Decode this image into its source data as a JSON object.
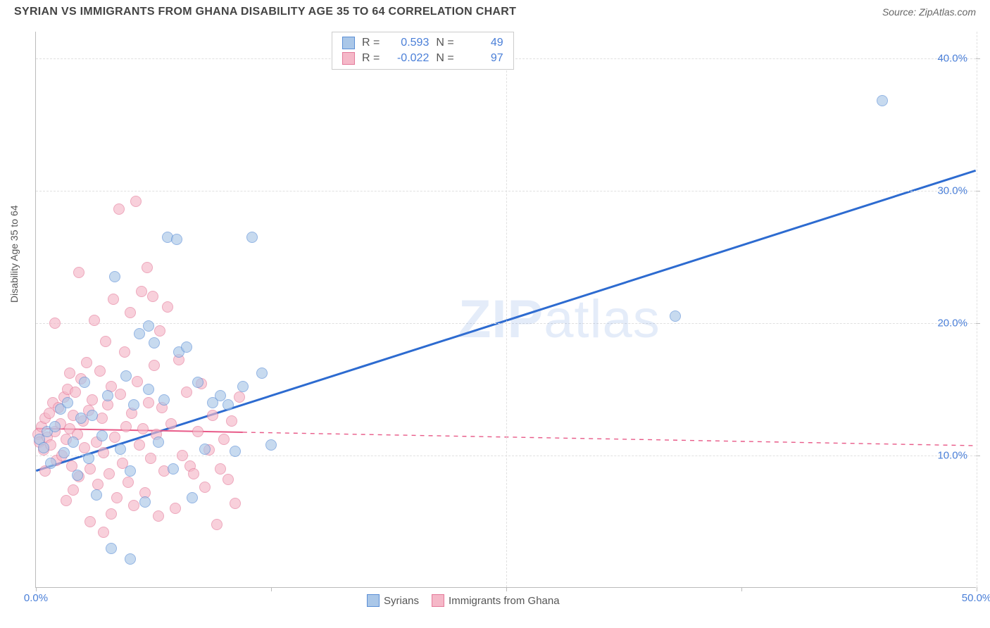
{
  "header": {
    "title": "SYRIAN VS IMMIGRANTS FROM GHANA DISABILITY AGE 35 TO 64 CORRELATION CHART",
    "source": "Source: ZipAtlas.com"
  },
  "watermark": {
    "bold": "ZIP",
    "light": "atlas"
  },
  "chart": {
    "type": "scatter",
    "ylabel": "Disability Age 35 to 64",
    "background_color": "#ffffff",
    "grid_color": "#e0e0e0",
    "tick_label_color": "#4a7fd8",
    "label_fontsize": 14,
    "tick_fontsize": 15,
    "xlim": [
      0,
      50
    ],
    "ylim": [
      0,
      42
    ],
    "x_ticks": [
      {
        "pos": 0,
        "label": "0.0%"
      },
      {
        "pos": 25,
        "label": ""
      },
      {
        "pos": 50,
        "label": "50.0%"
      }
    ],
    "y_ticks": [
      {
        "pos": 10,
        "label": "10.0%"
      },
      {
        "pos": 20,
        "label": "20.0%"
      },
      {
        "pos": 30,
        "label": "30.0%"
      },
      {
        "pos": 40,
        "label": "40.0%"
      }
    ],
    "x_minor_ticks": [
      12.5,
      37.5
    ],
    "marker_radius": 8,
    "marker_opacity": 0.65,
    "series": [
      {
        "name": "Syrians",
        "fill_color": "#aac7e8",
        "stroke_color": "#5b8fd6",
        "trend_color": "#2d6bd0",
        "trend_width": 3,
        "trend_solid_until": 50,
        "r": 0.593,
        "n": 49,
        "trend": {
          "x1": 0,
          "y1": 8.8,
          "x2": 50,
          "y2": 31.5
        },
        "points": [
          [
            0.2,
            11.2
          ],
          [
            0.4,
            10.6
          ],
          [
            0.6,
            11.8
          ],
          [
            0.8,
            9.4
          ],
          [
            1.0,
            12.2
          ],
          [
            1.3,
            13.5
          ],
          [
            1.5,
            10.2
          ],
          [
            1.7,
            14.0
          ],
          [
            2.0,
            11.0
          ],
          [
            2.2,
            8.5
          ],
          [
            2.4,
            12.8
          ],
          [
            2.6,
            15.5
          ],
          [
            2.8,
            9.8
          ],
          [
            3.0,
            13.0
          ],
          [
            3.2,
            7.0
          ],
          [
            3.5,
            11.5
          ],
          [
            3.8,
            14.5
          ],
          [
            4.0,
            3.0
          ],
          [
            4.2,
            23.5
          ],
          [
            4.5,
            10.5
          ],
          [
            4.8,
            16.0
          ],
          [
            5.0,
            8.8
          ],
          [
            5.2,
            13.8
          ],
          [
            5.5,
            19.2
          ],
          [
            5.8,
            6.5
          ],
          [
            6.0,
            15.0
          ],
          [
            6.3,
            18.5
          ],
          [
            6.5,
            11.0
          ],
          [
            6.8,
            14.2
          ],
          [
            7.0,
            26.5
          ],
          [
            7.3,
            9.0
          ],
          [
            7.6,
            17.8
          ],
          [
            8.0,
            18.2
          ],
          [
            8.3,
            6.8
          ],
          [
            8.6,
            15.5
          ],
          [
            9.0,
            10.5
          ],
          [
            9.4,
            14.0
          ],
          [
            9.8,
            14.5
          ],
          [
            10.2,
            13.8
          ],
          [
            10.6,
            10.3
          ],
          [
            11.0,
            15.2
          ],
          [
            11.5,
            26.5
          ],
          [
            12.0,
            16.2
          ],
          [
            12.5,
            10.8
          ],
          [
            5.0,
            2.2
          ],
          [
            6.0,
            19.8
          ],
          [
            34.0,
            20.5
          ],
          [
            45.0,
            36.8
          ],
          [
            7.5,
            26.3
          ]
        ]
      },
      {
        "name": "Immigrants from Ghana",
        "fill_color": "#f5b8c8",
        "stroke_color": "#e47a9a",
        "trend_color": "#e85a88",
        "trend_width": 2,
        "trend_solid_until": 11,
        "r": -0.022,
        "n": 97,
        "trend": {
          "x1": 0,
          "y1": 12.0,
          "x2": 50,
          "y2": 10.7
        },
        "points": [
          [
            0.1,
            11.6
          ],
          [
            0.2,
            11.0
          ],
          [
            0.3,
            12.2
          ],
          [
            0.4,
            10.4
          ],
          [
            0.5,
            12.8
          ],
          [
            0.6,
            11.4
          ],
          [
            0.7,
            13.2
          ],
          [
            0.8,
            10.8
          ],
          [
            0.9,
            14.0
          ],
          [
            1.0,
            11.8
          ],
          [
            1.1,
            9.6
          ],
          [
            1.2,
            13.6
          ],
          [
            1.3,
            12.4
          ],
          [
            1.4,
            10.0
          ],
          [
            1.5,
            14.4
          ],
          [
            1.6,
            11.2
          ],
          [
            1.7,
            15.0
          ],
          [
            1.8,
            12.0
          ],
          [
            1.9,
            9.2
          ],
          [
            2.0,
            13.0
          ],
          [
            2.1,
            14.8
          ],
          [
            2.2,
            11.6
          ],
          [
            2.3,
            8.4
          ],
          [
            2.4,
            15.8
          ],
          [
            2.5,
            12.6
          ],
          [
            2.6,
            10.6
          ],
          [
            2.7,
            17.0
          ],
          [
            2.8,
            13.4
          ],
          [
            2.9,
            9.0
          ],
          [
            3.0,
            14.2
          ],
          [
            3.1,
            20.2
          ],
          [
            3.2,
            11.0
          ],
          [
            3.3,
            7.8
          ],
          [
            3.4,
            16.4
          ],
          [
            3.5,
            12.8
          ],
          [
            3.6,
            10.2
          ],
          [
            3.7,
            18.6
          ],
          [
            3.8,
            13.8
          ],
          [
            3.9,
            8.6
          ],
          [
            4.0,
            15.2
          ],
          [
            4.1,
            21.8
          ],
          [
            4.2,
            11.4
          ],
          [
            4.3,
            6.8
          ],
          [
            4.4,
            28.6
          ],
          [
            4.5,
            14.6
          ],
          [
            4.6,
            9.4
          ],
          [
            4.7,
            17.8
          ],
          [
            4.8,
            12.2
          ],
          [
            4.9,
            8.0
          ],
          [
            5.0,
            20.8
          ],
          [
            5.1,
            13.2
          ],
          [
            5.2,
            6.2
          ],
          [
            5.3,
            29.2
          ],
          [
            5.4,
            15.6
          ],
          [
            5.5,
            10.8
          ],
          [
            5.6,
            22.4
          ],
          [
            5.7,
            12.0
          ],
          [
            5.8,
            7.2
          ],
          [
            5.9,
            24.2
          ],
          [
            6.0,
            14.0
          ],
          [
            6.1,
            9.8
          ],
          [
            6.2,
            22.0
          ],
          [
            6.3,
            16.8
          ],
          [
            6.4,
            11.6
          ],
          [
            6.5,
            5.4
          ],
          [
            6.6,
            19.4
          ],
          [
            6.7,
            13.6
          ],
          [
            6.8,
            8.8
          ],
          [
            7.0,
            21.2
          ],
          [
            7.2,
            12.4
          ],
          [
            7.4,
            6.0
          ],
          [
            7.6,
            17.2
          ],
          [
            7.8,
            10.0
          ],
          [
            8.0,
            14.8
          ],
          [
            8.2,
            9.2
          ],
          [
            8.4,
            8.6
          ],
          [
            8.6,
            11.8
          ],
          [
            8.8,
            15.4
          ],
          [
            9.0,
            7.6
          ],
          [
            9.2,
            10.4
          ],
          [
            9.4,
            13.0
          ],
          [
            9.6,
            4.8
          ],
          [
            9.8,
            9.0
          ],
          [
            10.0,
            11.2
          ],
          [
            10.2,
            8.2
          ],
          [
            10.4,
            12.6
          ],
          [
            10.6,
            6.4
          ],
          [
            10.8,
            14.4
          ],
          [
            1.0,
            20.0
          ],
          [
            2.3,
            23.8
          ],
          [
            3.6,
            4.2
          ],
          [
            1.6,
            6.6
          ],
          [
            2.9,
            5.0
          ],
          [
            0.5,
            8.8
          ],
          [
            1.8,
            16.2
          ],
          [
            4.0,
            5.6
          ],
          [
            2.0,
            7.4
          ]
        ]
      }
    ],
    "legend_top": {
      "r_label": "R =",
      "n_label": "N ="
    },
    "legend_bottom_labels": [
      "Syrians",
      "Immigrants from Ghana"
    ]
  }
}
